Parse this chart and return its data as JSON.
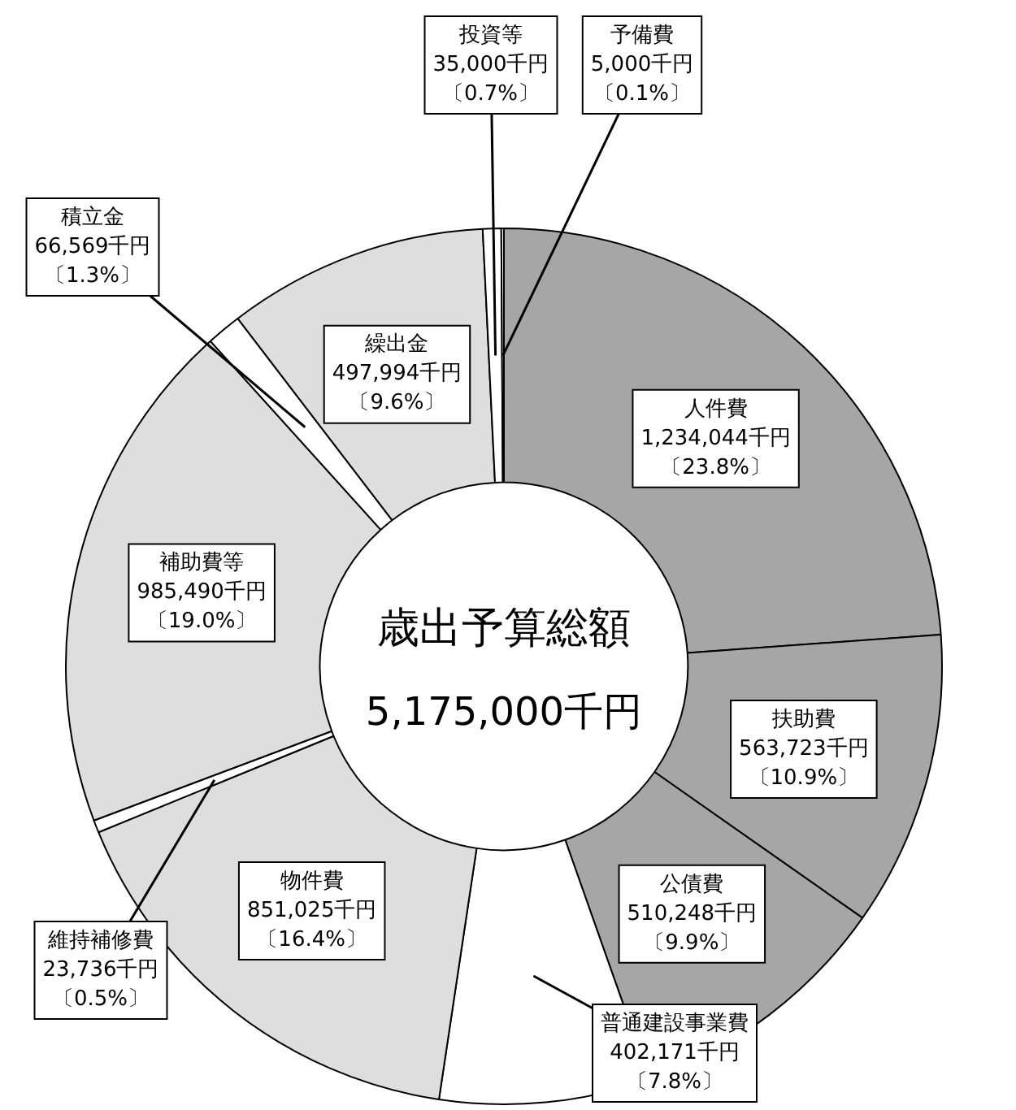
{
  "chart_data": {
    "type": "donut",
    "title": "歳出予算総額",
    "subtitle": "5,175,000千円",
    "categories": [
      "人件費",
      "扶助費",
      "公債費",
      "普通建設事業費",
      "物件費",
      "維持補修費",
      "補助費等",
      "積立金",
      "繰出金",
      "投資等",
      "予備費"
    ],
    "values": [
      1234044,
      563723,
      510248,
      402171,
      851025,
      23736,
      985490,
      66569,
      497994,
      35000,
      5000
    ],
    "colors": [
      "#a6a6a6",
      "#a6a6a6",
      "#a6a6a6",
      "#ffffff",
      "#dedede",
      "#ffffff",
      "#dedede",
      "#ffffff",
      "#dedede",
      "#ffffff",
      "#ffffff"
    ],
    "value_labels": [
      "1,234,044千円〔23.8%〕",
      "563,723千円〔10.9%〕",
      "510,248千円〔9.9%〕",
      "402,171千円〔7.8%〕",
      "851,025千円〔16.4%〕",
      "23,736千円〔0.5%〕",
      "985,490千円〔19.0%〕",
      "66,569千円〔1.3%〕",
      "497,994千円〔9.6%〕",
      "35,000千円〔0.7%〕",
      "5,000千円〔0.1%〕"
    ],
    "legend": false
  }
}
